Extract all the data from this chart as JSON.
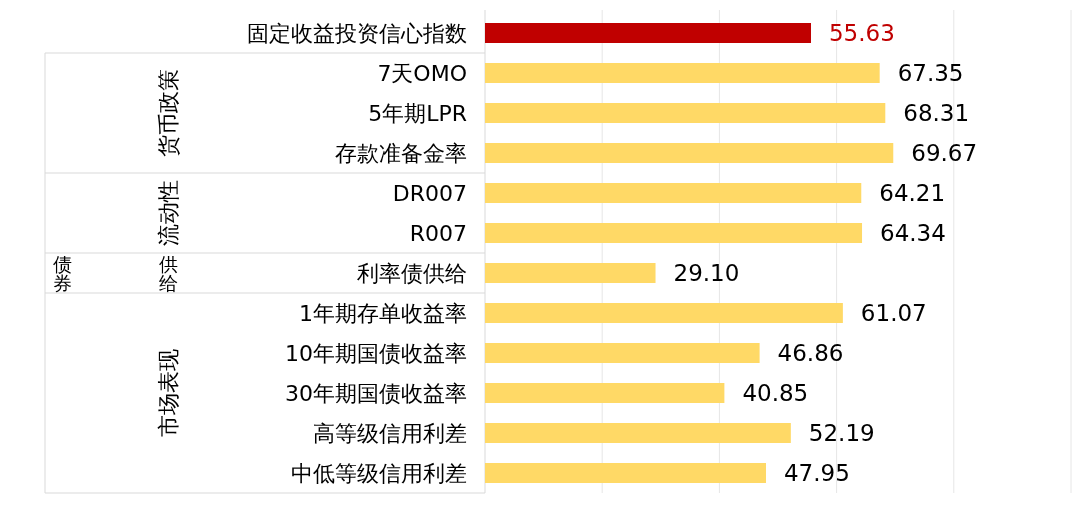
{
  "chart_data": {
    "type": "bar",
    "orientation": "horizontal",
    "categories": [
      "固定收益投资信心指数",
      "7天OMO",
      "5年期LPR",
      "存款准备金率",
      "DR007",
      "R007",
      "利率债供给",
      "1年期存单收益率",
      "10年期国债收益率",
      "30年期国债收益率",
      "高等级信用利差",
      "中低等级信用利差"
    ],
    "values": [
      55.63,
      67.35,
      68.31,
      69.67,
      64.21,
      64.34,
      29.1,
      61.07,
      46.86,
      40.85,
      52.19,
      47.95
    ],
    "value_labels": [
      "55.63",
      "67.35",
      "68.31",
      "69.67",
      "64.21",
      "64.34",
      "29.10",
      "61.07",
      "46.86",
      "40.85",
      "52.19",
      "47.95"
    ],
    "colors": [
      "#c00000",
      "#ffd966",
      "#ffd966",
      "#ffd966",
      "#ffd966",
      "#ffd966",
      "#ffd966",
      "#ffd966",
      "#ffd966",
      "#ffd966",
      "#ffd966",
      "#ffd966"
    ],
    "xlim": [
      0,
      100
    ],
    "xticks": [
      {
        "value": 20,
        "label": null
      },
      {
        "value": 40,
        "label": null
      },
      {
        "value": 60,
        "label": null
      },
      {
        "value": 80,
        "label": null
      },
      {
        "value": 100,
        "label": null
      }
    ],
    "grid": "x",
    "tick_labels": "y",
    "annotations": [
      "货币政策",
      "流动性",
      "债券供给",
      "市场表现"
    ]
  }
}
